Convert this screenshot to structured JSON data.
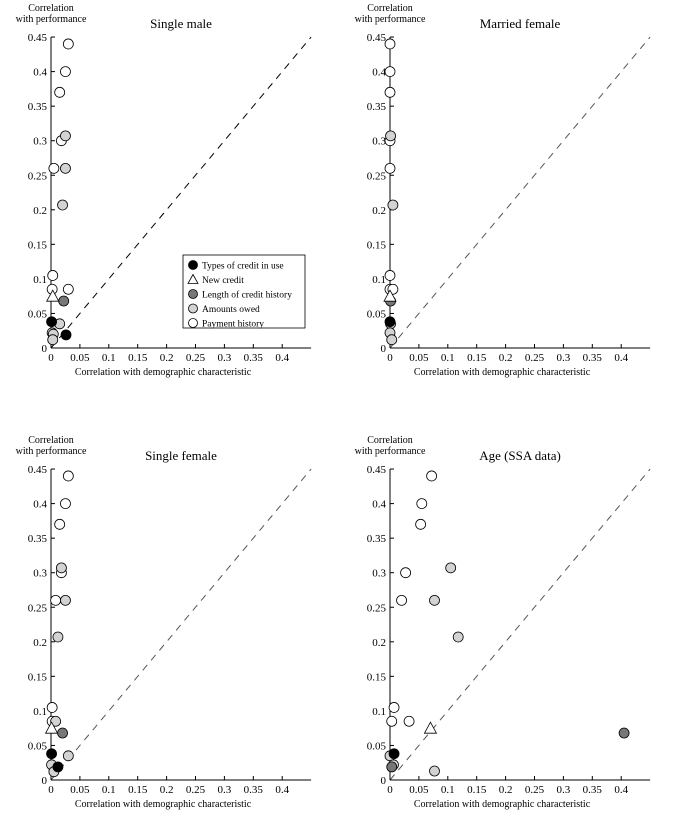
{
  "chart_data": [
    {
      "type": "scatter",
      "title": "Single male",
      "ylabel": "Correlation with performance",
      "xlabel": "Correlation with demographic characteristic",
      "xlim": [
        0,
        0.45
      ],
      "ylim": [
        0,
        0.45
      ],
      "xticks": [
        "0",
        "0.05",
        "0.1",
        "0.15",
        "0.2",
        "0.25",
        "0.3",
        "0.35",
        "0.4"
      ],
      "yticks": [
        "0",
        "0.05",
        "0.1",
        "0.15",
        "0.2",
        "0.25",
        "0.3",
        "0.35",
        "0.4",
        "0.45"
      ],
      "reference_line": "y = x (dashed)",
      "legend": "center-right",
      "series": [
        {
          "name": "Types of credit in use",
          "points": [
            [
              0.001,
              0.038
            ],
            [
              0.026,
              0.019
            ]
          ]
        },
        {
          "name": "New credit",
          "points": [
            [
              0.003,
              0.075
            ]
          ]
        },
        {
          "name": "Length of credit history",
          "points": [
            [
              0.022,
              0.068
            ]
          ]
        },
        {
          "name": "Amounts owed",
          "points": [
            [
              0.025,
              0.307
            ],
            [
              0.025,
              0.26
            ],
            [
              0.02,
              0.207
            ],
            [
              0.015,
              0.035
            ],
            [
              0.002,
              0.022
            ],
            [
              0.004,
              0.02
            ],
            [
              0.003,
              0.012
            ]
          ]
        },
        {
          "name": "Payment history",
          "points": [
            [
              0.03,
              0.44
            ],
            [
              0.025,
              0.4
            ],
            [
              0.015,
              0.37
            ],
            [
              0.018,
              0.3
            ],
            [
              0.005,
              0.26
            ],
            [
              0.003,
              0.105
            ],
            [
              0.002,
              0.085
            ],
            [
              0.03,
              0.085
            ]
          ]
        }
      ]
    },
    {
      "type": "scatter",
      "title": "Married female",
      "ylabel": "Correlation with performance",
      "xlabel": "Correlation with demographic characteristic",
      "xlim": [
        0,
        0.45
      ],
      "ylim": [
        0,
        0.45
      ],
      "xticks": [
        "0",
        "0.05",
        "0.1",
        "0.15",
        "0.2",
        "0.25",
        "0.3",
        "0.35",
        "0.4"
      ],
      "yticks": [
        "0",
        "0.05",
        "0.1",
        "0.15",
        "0.2",
        "0.25",
        "0.3",
        "0.35",
        "0.4",
        "0.45"
      ],
      "reference_line": "y = x (dashed)",
      "series": [
        {
          "name": "Types of credit in use",
          "points": [
            [
              0,
              0.038
            ]
          ]
        },
        {
          "name": "New credit",
          "points": [
            [
              0,
              0.075
            ]
          ]
        },
        {
          "name": "Length of credit history",
          "points": [
            [
              0.001,
              0.068
            ]
          ]
        },
        {
          "name": "Amounts owed",
          "points": [
            [
              0.001,
              0.307
            ],
            [
              0.005,
              0.207
            ],
            [
              0.001,
              0.035
            ],
            [
              0,
              0.022
            ],
            [
              0.003,
              0.012
            ]
          ]
        },
        {
          "name": "Payment history",
          "points": [
            [
              0,
              0.44
            ],
            [
              0,
              0.4
            ],
            [
              0,
              0.37
            ],
            [
              0,
              0.3
            ],
            [
              0,
              0.26
            ],
            [
              0,
              0.105
            ],
            [
              0,
              0.085
            ],
            [
              0.005,
              0.085
            ]
          ]
        }
      ]
    },
    {
      "type": "scatter",
      "title": "Single female",
      "ylabel": "Correlation with performance",
      "xlabel": "Correlation with demographic characteristic",
      "xlim": [
        0,
        0.45
      ],
      "ylim": [
        0,
        0.45
      ],
      "xticks": [
        "0",
        "0.05",
        "0.1",
        "0.15",
        "0.2",
        "0.25",
        "0.3",
        "0.35",
        "0.4"
      ],
      "yticks": [
        "0",
        "0.05",
        "0.1",
        "0.15",
        "0.2",
        "0.25",
        "0.3",
        "0.35",
        "0.4",
        "0.45"
      ],
      "reference_line": "y = x (dashed)",
      "series": [
        {
          "name": "Types of credit in use",
          "points": [
            [
              0.001,
              0.038
            ],
            [
              0.012,
              0.019
            ]
          ]
        },
        {
          "name": "New credit",
          "points": [
            [
              0.001,
              0.075
            ]
          ]
        },
        {
          "name": "Length of credit history",
          "points": [
            [
              0.02,
              0.068
            ]
          ]
        },
        {
          "name": "Amounts owed",
          "points": [
            [
              0.018,
              0.307
            ],
            [
              0.025,
              0.26
            ],
            [
              0.012,
              0.207
            ],
            [
              0.008,
              0.085
            ],
            [
              0.03,
              0.035
            ],
            [
              0.001,
              0.022
            ],
            [
              0.005,
              0.012
            ]
          ]
        },
        {
          "name": "Payment history",
          "points": [
            [
              0.03,
              0.44
            ],
            [
              0.025,
              0.4
            ],
            [
              0.015,
              0.37
            ],
            [
              0.018,
              0.3
            ],
            [
              0.008,
              0.26
            ],
            [
              0.002,
              0.105
            ],
            [
              0.002,
              0.085
            ]
          ]
        }
      ]
    },
    {
      "type": "scatter",
      "title": "Age (SSA data)",
      "ylabel": "Correlation with performance",
      "xlabel": "Correlation with demographic characteristic",
      "xlim": [
        0,
        0.45
      ],
      "ylim": [
        0,
        0.45
      ],
      "xticks": [
        "0",
        "0.05",
        "0.1",
        "0.15",
        "0.2",
        "0.25",
        "0.3",
        "0.35",
        "0.4"
      ],
      "yticks": [
        "0",
        "0.05",
        "0.1",
        "0.15",
        "0.2",
        "0.25",
        "0.3",
        "0.35",
        "0.4",
        "0.45"
      ],
      "reference_line": "y = x (dashed)",
      "series": [
        {
          "name": "Types of credit in use",
          "points": [
            [
              0.007,
              0.038
            ]
          ]
        },
        {
          "name": "New credit",
          "points": [
            [
              0.07,
              0.075
            ]
          ]
        },
        {
          "name": "Length of credit history",
          "points": [
            [
              0.405,
              0.068
            ],
            [
              0.003,
              0.019
            ]
          ]
        },
        {
          "name": "Amounts owed",
          "points": [
            [
              0.105,
              0.307
            ],
            [
              0.077,
              0.26
            ],
            [
              0.118,
              0.207
            ],
            [
              0.077,
              0.013
            ],
            [
              0,
              0.035
            ],
            [
              0.006,
              0.022
            ]
          ]
        },
        {
          "name": "Payment history",
          "points": [
            [
              0.072,
              0.44
            ],
            [
              0.055,
              0.4
            ],
            [
              0.053,
              0.37
            ],
            [
              0.027,
              0.3
            ],
            [
              0.02,
              0.26
            ],
            [
              0.007,
              0.105
            ],
            [
              0.003,
              0.085
            ],
            [
              0.033,
              0.085
            ]
          ]
        }
      ]
    }
  ],
  "colors": {
    "Types of credit in use": "#000000",
    "New credit": "#ffffff",
    "Length of credit history": "#777777",
    "Amounts owed": "#d3d3d3",
    "Payment history": "#ffffff"
  }
}
